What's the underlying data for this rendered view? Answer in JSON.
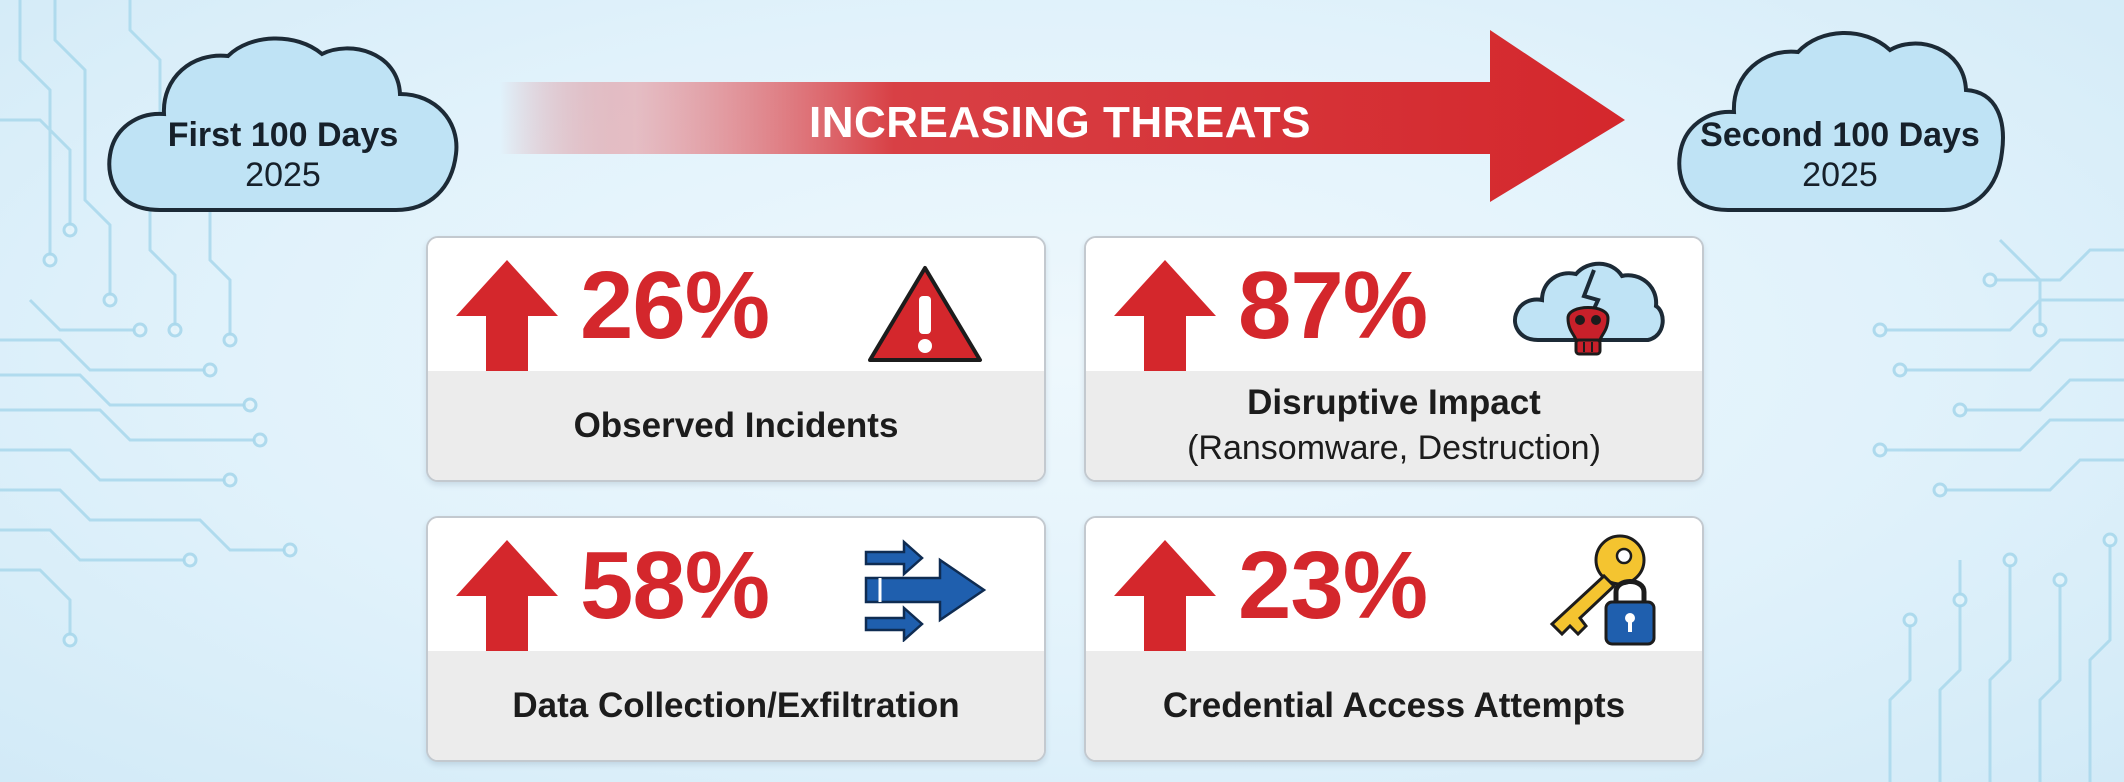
{
  "header": {
    "left_cloud": {
      "title": "First 100 Days",
      "year": "2025"
    },
    "right_cloud": {
      "title": "Second 100 Days",
      "year": "2025"
    },
    "arrow_label": "INCREASING THREATS"
  },
  "colors": {
    "threat_red": "#d4272c",
    "cloud_fill": "#bfe3f5",
    "cloud_stroke": "#1c2a36",
    "circuit": "#9fd3ea",
    "card_bottom": "#ececec",
    "blue_icon": "#1f5fae",
    "key_yellow": "#f4c430"
  },
  "cards": [
    {
      "percent": "26%",
      "label": "Observed Incidents",
      "sublabel": "",
      "icon": "warning-triangle-icon"
    },
    {
      "percent": "87%",
      "label": "Disruptive Impact",
      "sublabel": "(Ransomware, Destruction)",
      "icon": "cloud-skull-icon"
    },
    {
      "percent": "58%",
      "label": "Data Collection/Exfiltration",
      "sublabel": "",
      "icon": "data-transfer-arrows-icon"
    },
    {
      "percent": "23%",
      "label": "Credential Access Attempts",
      "sublabel": "",
      "icon": "key-lock-icon"
    }
  ]
}
